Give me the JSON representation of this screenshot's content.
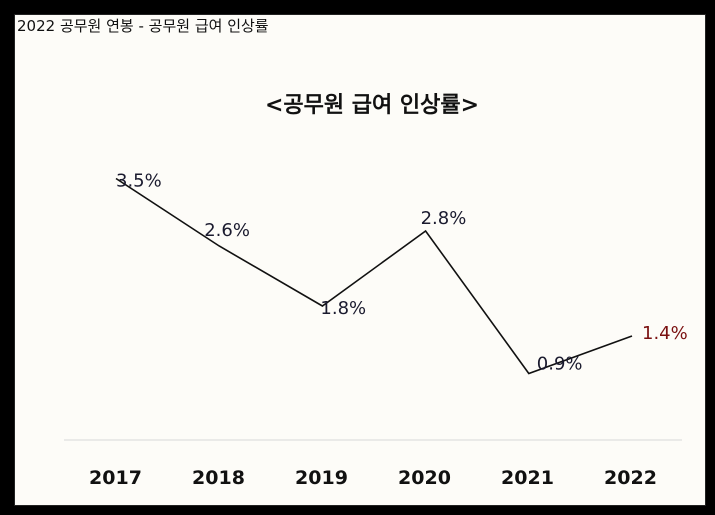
{
  "caption": "2022 공무원 연봉 - 공무원 급여 인상률",
  "chart_data": {
    "type": "line",
    "title": "<공무원 급여 인상률>",
    "categories": [
      "2017",
      "2018",
      "2019",
      "2020",
      "2021",
      "2022"
    ],
    "series": [
      {
        "values": [
          3.5,
          2.6,
          1.8,
          2.8,
          0.9,
          1.4
        ]
      }
    ],
    "data_labels": [
      "3.5%",
      "2.6%",
      "1.8%",
      "2.8%",
      "0.9%",
      "1.4%"
    ],
    "highlight_index": 5,
    "line_color": "#111111",
    "highlight_color": "#7a1010",
    "axis_line_color": "#d8d8d8",
    "xlabel": "",
    "ylabel": "",
    "grid": false,
    "legend": false
  }
}
